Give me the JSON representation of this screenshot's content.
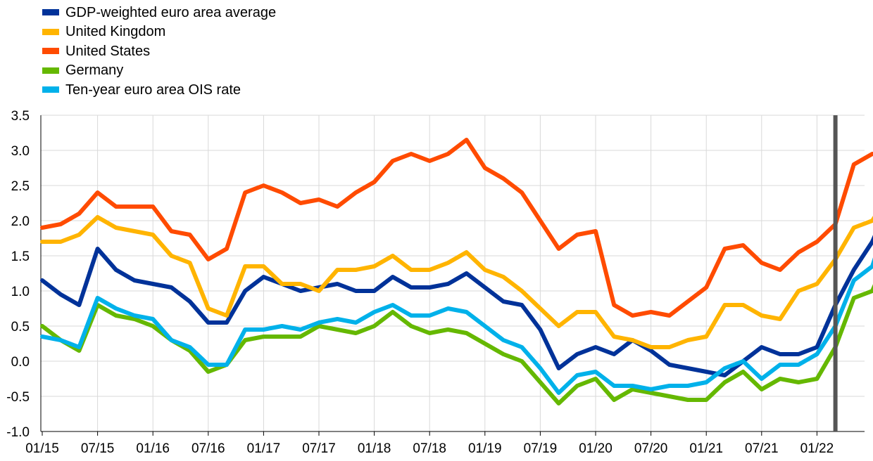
{
  "chart_data": {
    "type": "line",
    "title": "",
    "xlabel": "",
    "ylabel": "",
    "ylim": [
      -1.0,
      3.5
    ],
    "y_ticks": [
      "-1.0",
      "-0.5",
      "0.0",
      "0.5",
      "1.0",
      "1.5",
      "2.0",
      "2.5",
      "3.0",
      "3.5"
    ],
    "x_ticks": [
      "01/15",
      "07/15",
      "01/16",
      "07/16",
      "01/17",
      "07/17",
      "01/18",
      "07/18",
      "01/19",
      "07/19",
      "01/20",
      "07/20",
      "01/21",
      "07/21",
      "01/22"
    ],
    "x_range": [
      "2015-01",
      "2022-08"
    ],
    "grid": "horizontal",
    "legend_position": "top-left",
    "vertical_marker": "2022-03",
    "x": [
      "2015-01",
      "2015-03",
      "2015-05",
      "2015-07",
      "2015-09",
      "2015-11",
      "2016-01",
      "2016-03",
      "2016-05",
      "2016-07",
      "2016-09",
      "2016-11",
      "2017-01",
      "2017-03",
      "2017-05",
      "2017-07",
      "2017-09",
      "2017-11",
      "2018-01",
      "2018-03",
      "2018-05",
      "2018-07",
      "2018-09",
      "2018-11",
      "2019-01",
      "2019-03",
      "2019-05",
      "2019-07",
      "2019-09",
      "2019-11",
      "2020-01",
      "2020-03",
      "2020-05",
      "2020-07",
      "2020-09",
      "2020-11",
      "2021-01",
      "2021-03",
      "2021-05",
      "2021-07",
      "2021-09",
      "2021-11",
      "2022-01",
      "2022-03",
      "2022-05",
      "2022-07",
      "2022-08"
    ],
    "series": [
      {
        "name": "GDP-weighted euro area average",
        "color": "#003299",
        "values": [
          1.15,
          0.95,
          0.8,
          1.6,
          1.3,
          1.15,
          1.1,
          1.05,
          0.85,
          0.55,
          0.55,
          1.0,
          1.2,
          1.1,
          1.0,
          1.05,
          1.1,
          1.0,
          1.0,
          1.2,
          1.05,
          1.05,
          1.1,
          1.25,
          1.05,
          0.85,
          0.8,
          0.45,
          -0.1,
          0.1,
          0.2,
          0.1,
          0.3,
          0.15,
          -0.05,
          -0.1,
          -0.15,
          -0.2,
          0.0,
          0.2,
          0.1,
          0.1,
          0.2,
          0.8,
          1.3,
          1.7,
          2.0
        ]
      },
      {
        "name": "United Kingdom",
        "color": "#FFB400",
        "values": [
          1.7,
          1.7,
          1.8,
          2.05,
          1.9,
          1.85,
          1.8,
          1.5,
          1.4,
          0.75,
          0.65,
          1.35,
          1.35,
          1.1,
          1.1,
          1.0,
          1.3,
          1.3,
          1.35,
          1.5,
          1.3,
          1.3,
          1.4,
          1.55,
          1.3,
          1.2,
          1.0,
          0.75,
          0.5,
          0.7,
          0.7,
          0.35,
          0.3,
          0.2,
          0.2,
          0.3,
          0.35,
          0.8,
          0.8,
          0.65,
          0.6,
          1.0,
          1.1,
          1.45,
          1.9,
          2.0,
          2.2
        ]
      },
      {
        "name": "United States",
        "color": "#FF4B00",
        "values": [
          1.9,
          1.95,
          2.1,
          2.4,
          2.2,
          2.2,
          2.2,
          1.85,
          1.8,
          1.45,
          1.6,
          2.4,
          2.5,
          2.4,
          2.25,
          2.3,
          2.2,
          2.4,
          2.55,
          2.85,
          2.95,
          2.85,
          2.95,
          3.15,
          2.75,
          2.6,
          2.4,
          2.0,
          1.6,
          1.8,
          1.85,
          0.8,
          0.65,
          0.7,
          0.65,
          0.85,
          1.05,
          1.6,
          1.65,
          1.4,
          1.3,
          1.55,
          1.7,
          1.95,
          2.8,
          2.95,
          2.95
        ]
      },
      {
        "name": "Germany",
        "color": "#65B800",
        "values": [
          0.5,
          0.3,
          0.15,
          0.8,
          0.65,
          0.6,
          0.5,
          0.3,
          0.15,
          -0.15,
          -0.05,
          0.3,
          0.35,
          0.35,
          0.35,
          0.5,
          0.45,
          0.4,
          0.5,
          0.7,
          0.5,
          0.4,
          0.45,
          0.4,
          0.25,
          0.1,
          0.0,
          -0.3,
          -0.6,
          -0.35,
          -0.25,
          -0.55,
          -0.4,
          -0.45,
          -0.5,
          -0.55,
          -0.55,
          -0.3,
          -0.15,
          -0.4,
          -0.25,
          -0.3,
          -0.25,
          0.2,
          0.9,
          1.0,
          1.3
        ]
      },
      {
        "name": "Ten-year euro area OIS rate",
        "color": "#00B1EA",
        "values": [
          0.35,
          0.3,
          0.2,
          0.9,
          0.75,
          0.65,
          0.6,
          0.3,
          0.2,
          -0.05,
          -0.05,
          0.45,
          0.45,
          0.5,
          0.45,
          0.55,
          0.6,
          0.55,
          0.7,
          0.8,
          0.65,
          0.65,
          0.75,
          0.7,
          0.5,
          0.3,
          0.2,
          -0.1,
          -0.45,
          -0.2,
          -0.15,
          -0.35,
          -0.35,
          -0.4,
          -0.35,
          -0.35,
          -0.3,
          -0.1,
          0.0,
          -0.25,
          -0.05,
          -0.05,
          0.1,
          0.5,
          1.15,
          1.35,
          1.75
        ]
      }
    ]
  }
}
